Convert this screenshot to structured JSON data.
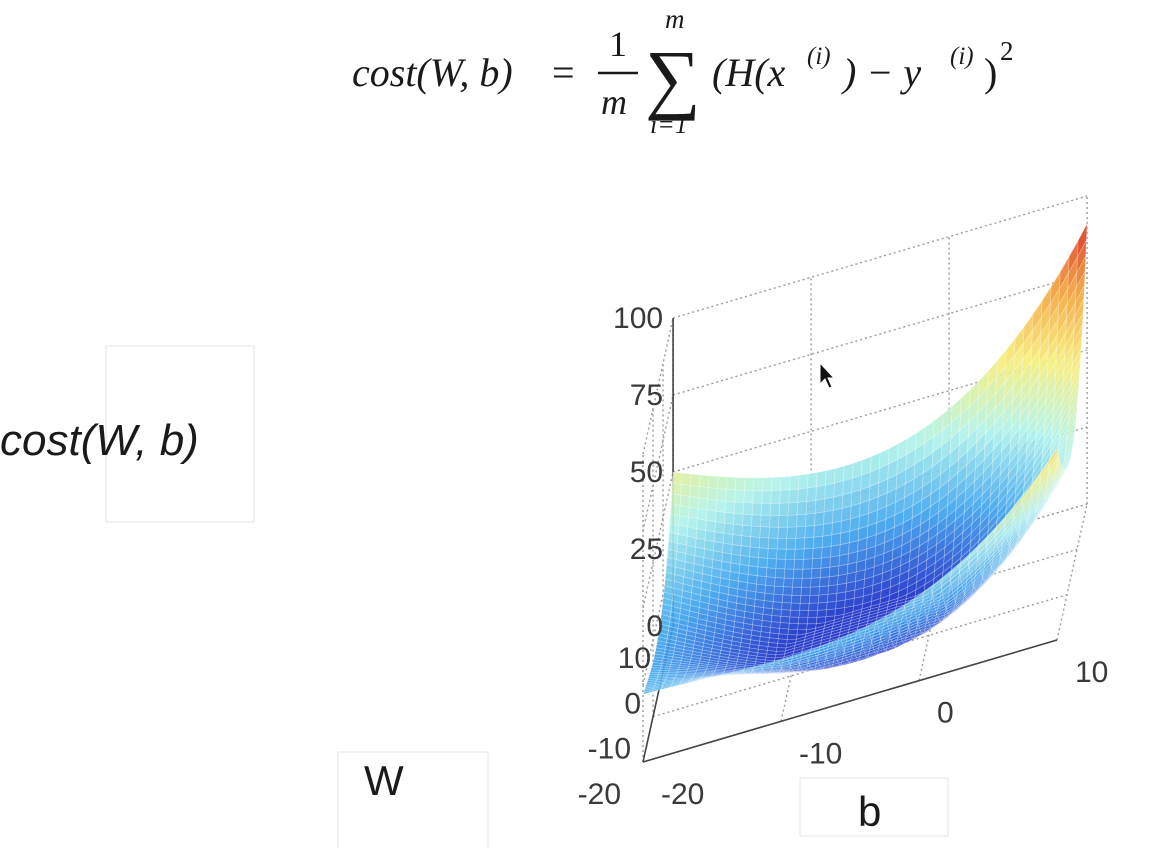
{
  "formula": {
    "lhs": "cost(W, b)",
    "eq": "=",
    "frac_num": "1",
    "frac_den": "m",
    "sum_top": "m",
    "sum_bottom": "i=1",
    "sigma": "∑",
    "body_a": "(H(x",
    "sup_i1": "(i)",
    "body_b": ") − y",
    "sup_i2": "(i)",
    "body_c": ")",
    "square": "2"
  },
  "chart_data": {
    "type": "surface",
    "title": "",
    "xlabel": "W",
    "ylabel": "b",
    "zlabel": "cost(W, b)",
    "xlim": [
      -20,
      10
    ],
    "ylim": [
      -20,
      10
    ],
    "zlim": [
      0,
      100
    ],
    "x_ticks": [
      "10",
      "0",
      "-10",
      "-20"
    ],
    "y_ticks": [
      "-20",
      "-10",
      "0",
      "10"
    ],
    "z_ticks": [
      "100",
      "75",
      "50",
      "25",
      "0"
    ],
    "surface": "bowl-shaped quadratic cost surface, minimum near W≈0, b≈0",
    "corner_values": [
      {
        "W": 10,
        "b": -20,
        "cost": 50
      },
      {
        "W": 10,
        "b": 10,
        "cost": 91
      },
      {
        "W": -20,
        "b": 10,
        "cost": 62
      },
      {
        "W": -20,
        "b": -20,
        "cost": 22
      }
    ],
    "grid": true,
    "colormap": [
      "#1a2fc8",
      "#3fa6ee",
      "#aef2ec",
      "#f6ef7a",
      "#f3a43a",
      "#d9261c"
    ]
  }
}
